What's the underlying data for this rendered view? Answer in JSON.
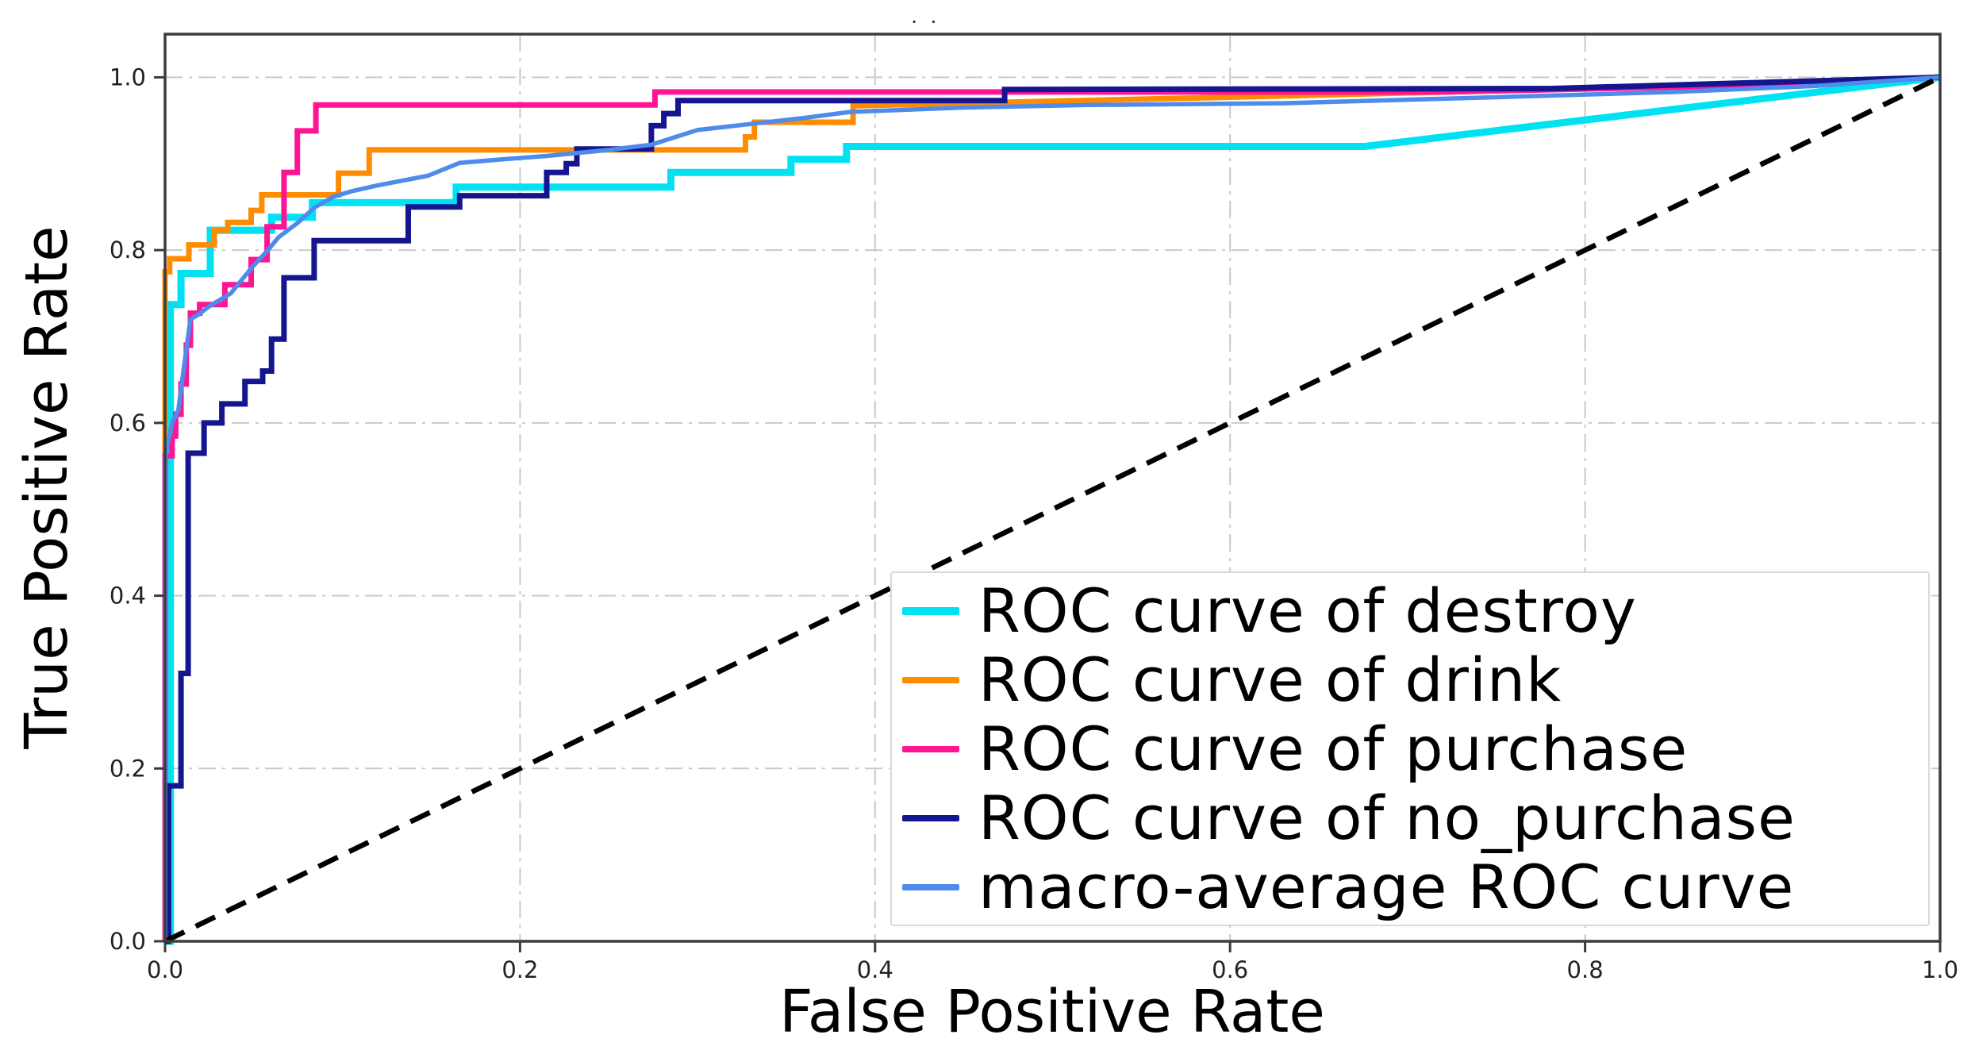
{
  "title": "..",
  "axes": {
    "xlabel": "False Positive Rate",
    "ylabel": "True Positive Rate"
  },
  "legend": {
    "position": "lower right",
    "items": [
      {
        "label": "ROC curve of destroy",
        "series": "destroy",
        "color": "#00E2F2"
      },
      {
        "label": "ROC curve of drink",
        "series": "drink",
        "color": "#FF8C00"
      },
      {
        "label": "ROC curve of purchase",
        "series": "purchase",
        "color": "#FF1493"
      },
      {
        "label": "ROC curve of no_purchase",
        "series": "no_purchase",
        "color": "#15158F"
      },
      {
        "label": "macro-average ROC curve",
        "series": "macro",
        "color": "#4E8BEA"
      }
    ]
  },
  "chart_data": {
    "type": "line",
    "title": "",
    "xlabel": "False Positive Rate",
    "ylabel": "True Positive Rate",
    "xlim": [
      0,
      1
    ],
    "ylim": [
      0,
      1.05
    ],
    "grid": true,
    "grid_style": "dash-dot",
    "grid_color": "#c9c9c9",
    "spine_color": "#3c3c3c",
    "tick_color": "#222222",
    "x_ticks": [
      0,
      0.2,
      0.4,
      0.6,
      0.8,
      1.0
    ],
    "y_ticks": [
      0,
      0.2,
      0.4,
      0.6,
      0.8,
      1.0
    ],
    "x_tick_labels": [
      "0.0",
      "0.2",
      "0.4",
      "0.6",
      "0.8",
      "1.0"
    ],
    "y_tick_labels": [
      "0.0",
      "0.2",
      "0.4",
      "0.6",
      "0.8",
      "1.0"
    ],
    "reference_line": {
      "name": "chance-diagonal",
      "style": "dashed",
      "color": "#000000",
      "points": [
        [
          0,
          0
        ],
        [
          1,
          1
        ]
      ]
    },
    "series": [
      {
        "name": "ROC curve of destroy",
        "key": "destroy",
        "color": "#00E2F2",
        "width": 9,
        "points": [
          [
            0,
            0
          ],
          [
            0.003,
            0
          ],
          [
            0.003,
            0.737
          ],
          [
            0.009,
            0.737
          ],
          [
            0.009,
            0.773
          ],
          [
            0.0255,
            0.773
          ],
          [
            0.0255,
            0.823
          ],
          [
            0.06,
            0.823
          ],
          [
            0.06,
            0.838
          ],
          [
            0.083,
            0.838
          ],
          [
            0.083,
            0.855
          ],
          [
            0.164,
            0.855
          ],
          [
            0.164,
            0.873
          ],
          [
            0.285,
            0.873
          ],
          [
            0.285,
            0.89
          ],
          [
            0.3526,
            0.89
          ],
          [
            0.3526,
            0.905
          ],
          [
            0.3839,
            0.905
          ],
          [
            0.3839,
            0.92
          ],
          [
            0.676,
            0.92
          ],
          [
            1,
            1
          ]
        ]
      },
      {
        "name": "ROC curve of drink",
        "key": "drink",
        "color": "#FF8C00",
        "width": 7,
        "points": [
          [
            0,
            0
          ],
          [
            0,
            0.775
          ],
          [
            0.0026,
            0.775
          ],
          [
            0.0026,
            0.79
          ],
          [
            0.0134,
            0.79
          ],
          [
            0.0134,
            0.806
          ],
          [
            0.0277,
            0.806
          ],
          [
            0.0277,
            0.823
          ],
          [
            0.0353,
            0.823
          ],
          [
            0.0353,
            0.832
          ],
          [
            0.0485,
            0.832
          ],
          [
            0.0485,
            0.846
          ],
          [
            0.0545,
            0.846
          ],
          [
            0.0545,
            0.864
          ],
          [
            0.0977,
            0.864
          ],
          [
            0.0977,
            0.889
          ],
          [
            0.115,
            0.889
          ],
          [
            0.115,
            0.916
          ],
          [
            0.327,
            0.916
          ],
          [
            0.327,
            0.931
          ],
          [
            0.332,
            0.931
          ],
          [
            0.332,
            0.948
          ],
          [
            0.3876,
            0.948
          ],
          [
            0.3876,
            0.967
          ],
          [
            0.47,
            0.971
          ],
          [
            0.6,
            0.977
          ],
          [
            0.8,
            0.987
          ],
          [
            1,
            1
          ]
        ]
      },
      {
        "name": "ROC curve of purchase",
        "key": "purchase",
        "color": "#FF1493",
        "width": 7,
        "points": [
          [
            0,
            0
          ],
          [
            0,
            0.562
          ],
          [
            0.004,
            0.562
          ],
          [
            0.004,
            0.585
          ],
          [
            0.006,
            0.585
          ],
          [
            0.006,
            0.61
          ],
          [
            0.009,
            0.61
          ],
          [
            0.009,
            0.645
          ],
          [
            0.012,
            0.645
          ],
          [
            0.012,
            0.69
          ],
          [
            0.0143,
            0.69
          ],
          [
            0.0143,
            0.727
          ],
          [
            0.0195,
            0.727
          ],
          [
            0.0195,
            0.737
          ],
          [
            0.0337,
            0.737
          ],
          [
            0.0337,
            0.76
          ],
          [
            0.0485,
            0.76
          ],
          [
            0.0485,
            0.789
          ],
          [
            0.0575,
            0.789
          ],
          [
            0.0575,
            0.827
          ],
          [
            0.067,
            0.827
          ],
          [
            0.067,
            0.89
          ],
          [
            0.0745,
            0.89
          ],
          [
            0.0745,
            0.938
          ],
          [
            0.085,
            0.938
          ],
          [
            0.085,
            0.968
          ],
          [
            0.276,
            0.968
          ],
          [
            0.276,
            0.983
          ],
          [
            0.72,
            0.983
          ],
          [
            0.88,
            0.99
          ],
          [
            1,
            1
          ]
        ]
      },
      {
        "name": "ROC curve of no_purchase",
        "key": "no_purchase",
        "color": "#15158F",
        "width": 7,
        "points": [
          [
            0,
            0
          ],
          [
            0.002,
            0
          ],
          [
            0.002,
            0.18
          ],
          [
            0.009,
            0.18
          ],
          [
            0.009,
            0.31
          ],
          [
            0.013,
            0.31
          ],
          [
            0.013,
            0.565
          ],
          [
            0.022,
            0.565
          ],
          [
            0.022,
            0.6
          ],
          [
            0.032,
            0.6
          ],
          [
            0.032,
            0.622
          ],
          [
            0.045,
            0.622
          ],
          [
            0.045,
            0.648
          ],
          [
            0.055,
            0.648
          ],
          [
            0.055,
            0.66
          ],
          [
            0.06,
            0.66
          ],
          [
            0.06,
            0.697
          ],
          [
            0.067,
            0.697
          ],
          [
            0.067,
            0.768
          ],
          [
            0.084,
            0.768
          ],
          [
            0.084,
            0.811
          ],
          [
            0.137,
            0.811
          ],
          [
            0.137,
            0.85
          ],
          [
            0.166,
            0.85
          ],
          [
            0.166,
            0.863
          ],
          [
            0.215,
            0.863
          ],
          [
            0.215,
            0.89
          ],
          [
            0.226,
            0.89
          ],
          [
            0.226,
            0.9
          ],
          [
            0.232,
            0.9
          ],
          [
            0.232,
            0.917
          ],
          [
            0.274,
            0.917
          ],
          [
            0.274,
            0.944
          ],
          [
            0.281,
            0.944
          ],
          [
            0.281,
            0.958
          ],
          [
            0.289,
            0.958
          ],
          [
            0.289,
            0.973
          ],
          [
            0.473,
            0.973
          ],
          [
            0.473,
            0.986
          ],
          [
            0.78,
            0.987
          ],
          [
            1,
            1
          ]
        ]
      },
      {
        "name": "macro-average ROC curve",
        "key": "macro",
        "color": "#4E8BEA",
        "width": 5.5,
        "points": [
          [
            0,
            0
          ],
          [
            0,
            0.56
          ],
          [
            0.004,
            0.6
          ],
          [
            0.0075,
            0.615
          ],
          [
            0.01,
            0.655
          ],
          [
            0.0143,
            0.72
          ],
          [
            0.0185,
            0.725
          ],
          [
            0.025,
            0.735
          ],
          [
            0.037,
            0.75
          ],
          [
            0.049,
            0.78
          ],
          [
            0.058,
            0.8
          ],
          [
            0.064,
            0.815
          ],
          [
            0.075,
            0.832
          ],
          [
            0.084,
            0.849
          ],
          [
            0.095,
            0.862
          ],
          [
            0.105,
            0.868
          ],
          [
            0.12,
            0.875
          ],
          [
            0.148,
            0.886
          ],
          [
            0.166,
            0.901
          ],
          [
            0.19,
            0.905
          ],
          [
            0.215,
            0.909
          ],
          [
            0.25,
            0.916
          ],
          [
            0.274,
            0.922
          ],
          [
            0.3,
            0.939
          ],
          [
            0.33,
            0.946
          ],
          [
            0.36,
            0.953
          ],
          [
            0.386,
            0.96
          ],
          [
            0.45,
            0.965
          ],
          [
            0.52,
            0.968
          ],
          [
            0.63,
            0.97
          ],
          [
            0.75,
            0.977
          ],
          [
            0.85,
            0.983
          ],
          [
            0.93,
            0.99
          ],
          [
            1,
            1
          ]
        ]
      }
    ]
  }
}
